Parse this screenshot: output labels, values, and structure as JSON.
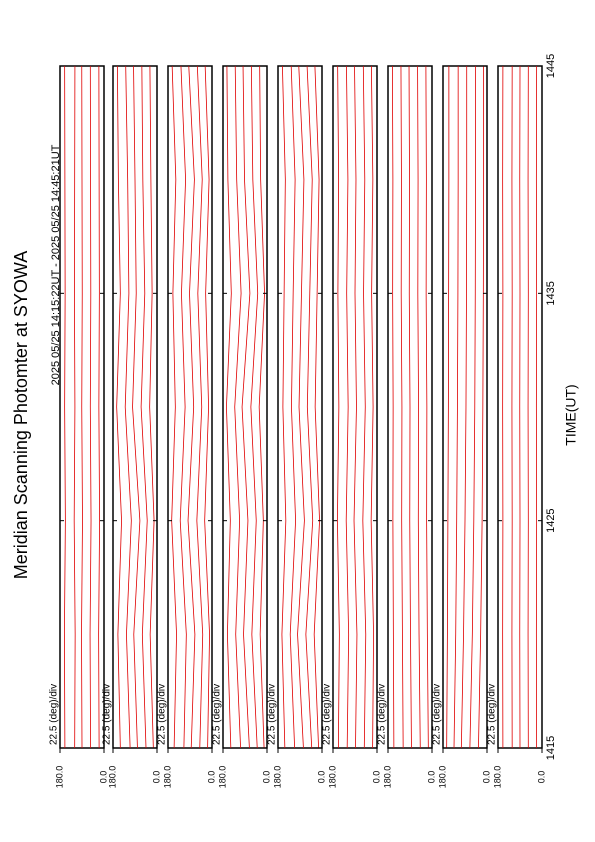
{
  "chart_data": [
    {
      "type": "line",
      "title": "Meridian Scanning Photomter at SYOWA",
      "subtitle": "2025 05/25 14:15:22UT - 2025 05/25 14:45:21UT",
      "annotation": "22.5 (deg)/div",
      "x": [
        1415,
        1420,
        1425,
        1430,
        1435,
        1440,
        1445
      ],
      "xlim": [
        1415,
        1445
      ],
      "xticks": [
        1415,
        1425,
        1435,
        1445
      ],
      "ylim": [
        180,
        0
      ],
      "yticks": [
        {
          "value": 180,
          "label": "180.0"
        },
        {
          "value": 0,
          "label": "0.0"
        }
      ],
      "series": [
        {
          "color": "#e00000",
          "values": [
            160,
            162,
            158,
            161,
            159,
            160,
            161
          ]
        },
        {
          "color": "#e00000",
          "values": [
            120,
            118,
            122,
            119,
            121,
            120,
            119
          ]
        },
        {
          "color": "#e00000",
          "values": [
            90,
            92,
            88,
            91,
            89,
            90,
            91
          ]
        },
        {
          "color": "#e00000",
          "values": [
            55,
            57,
            53,
            56,
            54,
            55,
            56
          ]
        },
        {
          "color": "#e00000",
          "values": [
            20,
            22,
            18,
            21,
            19,
            20,
            21
          ]
        }
      ]
    },
    {
      "type": "line",
      "annotation": "22.5 (deg)/div",
      "x": [
        1415,
        1420,
        1425,
        1430,
        1435,
        1440,
        1445
      ],
      "xlim": [
        1415,
        1445
      ],
      "xticks": [
        1415,
        1425,
        1435,
        1445
      ],
      "ylim": [
        180,
        0
      ],
      "yticks": [
        {
          "value": 180,
          "label": "180.0"
        },
        {
          "value": 0,
          "label": "0.0"
        }
      ],
      "series": [
        {
          "color": "#e00000",
          "values": [
            150,
            160,
            145,
            165,
            150,
            158,
            162
          ]
        },
        {
          "color": "#e00000",
          "values": [
            110,
            125,
            105,
            130,
            115,
            120,
            128
          ]
        },
        {
          "color": "#e00000",
          "values": [
            80,
            95,
            70,
            100,
            85,
            90,
            96
          ]
        },
        {
          "color": "#e00000",
          "values": [
            45,
            60,
            40,
            65,
            50,
            58,
            62
          ]
        },
        {
          "color": "#e00000",
          "values": [
            15,
            28,
            12,
            30,
            20,
            25,
            29
          ]
        }
      ]
    },
    {
      "type": "line",
      "annotation": "22.5 (deg)/div",
      "x": [
        1415,
        1420,
        1425,
        1430,
        1435,
        1440,
        1445
      ],
      "xlim": [
        1415,
        1445
      ],
      "xticks": [
        1415,
        1425,
        1435,
        1445
      ],
      "ylim": [
        180,
        0
      ],
      "yticks": [
        {
          "value": 180,
          "label": "180.0"
        },
        {
          "value": 0,
          "label": "0.0"
        }
      ],
      "series": [
        {
          "color": "#e00000",
          "values": [
            155,
            145,
            165,
            150,
            160,
            148,
            163
          ]
        },
        {
          "color": "#e00000",
          "values": [
            115,
            105,
            130,
            110,
            125,
            108,
            127
          ]
        },
        {
          "color": "#e00000",
          "values": [
            85,
            70,
            98,
            75,
            92,
            72,
            95
          ]
        },
        {
          "color": "#e00000",
          "values": [
            50,
            38,
            62,
            42,
            58,
            40,
            60
          ]
        },
        {
          "color": "#e00000",
          "values": [
            18,
            10,
            30,
            14,
            26,
            12,
            28
          ]
        }
      ]
    },
    {
      "type": "line",
      "annotation": "22.5 (deg)/div",
      "x": [
        1415,
        1420,
        1425,
        1430,
        1435,
        1440,
        1445
      ],
      "xlim": [
        1415,
        1445
      ],
      "xticks": [
        1415,
        1425,
        1435,
        1445
      ],
      "ylim": [
        180,
        0
      ],
      "yticks": [
        {
          "value": 180,
          "label": "180.0"
        },
        {
          "value": 0,
          "label": "0.0"
        }
      ],
      "series": [
        {
          "color": "#e00000",
          "values": [
            148,
            162,
            150,
            166,
            146,
            160,
            164
          ]
        },
        {
          "color": "#e00000",
          "values": [
            108,
            128,
            112,
            132,
            106,
            124,
            130
          ]
        },
        {
          "color": "#e00000",
          "values": [
            72,
            96,
            78,
            102,
            70,
            92,
            98
          ]
        },
        {
          "color": "#e00000",
          "values": [
            40,
            62,
            44,
            66,
            38,
            58,
            64
          ]
        },
        {
          "color": "#e00000",
          "values": [
            12,
            28,
            15,
            32,
            10,
            26,
            30
          ]
        }
      ]
    },
    {
      "type": "line",
      "annotation": "22.5 (deg)/div",
      "x": [
        1415,
        1420,
        1425,
        1430,
        1435,
        1440,
        1445
      ],
      "xlim": [
        1415,
        1445
      ],
      "xticks": [
        1415,
        1425,
        1435,
        1445
      ],
      "ylim": [
        180,
        0
      ],
      "yticks": [
        {
          "value": 180,
          "label": "180.0"
        },
        {
          "value": 0,
          "label": "0.0"
        }
      ],
      "series": [
        {
          "color": "#e00000",
          "values": [
            152,
            164,
            148,
            160,
            155,
            150,
            162
          ]
        },
        {
          "color": "#e00000",
          "values": [
            112,
            130,
            108,
            125,
            118,
            110,
            126
          ]
        },
        {
          "color": "#e00000",
          "values": [
            76,
            100,
            72,
            94,
            84,
            74,
            95
          ]
        },
        {
          "color": "#e00000",
          "values": [
            42,
            66,
            38,
            60,
            50,
            40,
            61
          ]
        },
        {
          "color": "#e00000",
          "values": [
            14,
            32,
            10,
            28,
            20,
            12,
            29
          ]
        }
      ]
    },
    {
      "type": "line",
      "annotation": "22.5 (deg)/div",
      "x": [
        1415,
        1420,
        1425,
        1430,
        1435,
        1440,
        1445
      ],
      "xlim": [
        1415,
        1445
      ],
      "xticks": [
        1415,
        1425,
        1435,
        1445
      ],
      "ylim": [
        180,
        0
      ],
      "yticks": [
        {
          "value": 180,
          "label": "180.0"
        },
        {
          "value": 0,
          "label": "0.0"
        }
      ],
      "series": [
        {
          "color": "#e00000",
          "values": [
            158,
            154,
            162,
            156,
            160,
            157,
            161
          ]
        },
        {
          "color": "#e00000",
          "values": [
            122,
            116,
            126,
            118,
            124,
            119,
            125
          ]
        },
        {
          "color": "#e00000",
          "values": [
            88,
            82,
            94,
            84,
            90,
            86,
            92
          ]
        },
        {
          "color": "#e00000",
          "values": [
            52,
            46,
            58,
            48,
            55,
            50,
            56
          ]
        },
        {
          "color": "#e00000",
          "values": [
            18,
            14,
            24,
            16,
            22,
            17,
            23
          ]
        }
      ]
    },
    {
      "type": "line",
      "annotation": "22.5 (deg)/div",
      "x": [
        1415,
        1420,
        1425,
        1430,
        1435,
        1440,
        1445
      ],
      "xlim": [
        1415,
        1445
      ],
      "xticks": [
        1415,
        1425,
        1435,
        1445
      ],
      "ylim": [
        180,
        0
      ],
      "yticks": [
        {
          "value": 180,
          "label": "180.0"
        },
        {
          "value": 0,
          "label": "0.0"
        }
      ],
      "series": [
        {
          "color": "#e00000",
          "values": [
            156,
            158,
            160,
            159,
            161,
            160,
            162
          ]
        },
        {
          "color": "#e00000",
          "values": [
            118,
            121,
            124,
            123,
            126,
            125,
            127
          ]
        },
        {
          "color": "#e00000",
          "values": [
            84,
            88,
            91,
            90,
            93,
            92,
            94
          ]
        },
        {
          "color": "#e00000",
          "values": [
            48,
            53,
            56,
            55,
            58,
            57,
            59
          ]
        },
        {
          "color": "#e00000",
          "values": [
            15,
            19,
            22,
            21,
            24,
            23,
            25
          ]
        }
      ]
    },
    {
      "type": "line",
      "annotation": "22.5 (deg)/div",
      "x": [
        1415,
        1420,
        1425,
        1430,
        1435,
        1440,
        1445
      ],
      "xlim": [
        1415,
        1445
      ],
      "xticks": [
        1415,
        1425,
        1435,
        1445
      ],
      "ylim": [
        180,
        0
      ],
      "yticks": [
        {
          "value": 180,
          "label": "180.0"
        },
        {
          "value": 0,
          "label": "0.0"
        }
      ],
      "series": [
        {
          "color": "#e00000",
          "values": [
            165,
            162,
            160,
            158,
            157,
            156,
            156
          ]
        },
        {
          "color": "#e00000",
          "values": [
            135,
            128,
            124,
            121,
            119,
            118,
            118
          ]
        },
        {
          "color": "#e00000",
          "values": [
            105,
            96,
            90,
            86,
            84,
            83,
            83
          ]
        },
        {
          "color": "#e00000",
          "values": [
            70,
            60,
            54,
            50,
            48,
            47,
            47
          ]
        },
        {
          "color": "#e00000",
          "values": [
            35,
            26,
            20,
            17,
            15,
            14,
            14
          ]
        }
      ]
    },
    {
      "type": "line",
      "annotation": "22.5 (deg)/div",
      "x_label": "TIME(UT)",
      "x": [
        1415,
        1420,
        1425,
        1430,
        1435,
        1440,
        1445
      ],
      "xlim": [
        1415,
        1445
      ],
      "xticks": [
        1415,
        1425,
        1435,
        1445
      ],
      "ylim": [
        180,
        0
      ],
      "yticks": [
        {
          "value": 180,
          "label": "180.0"
        },
        {
          "value": 0,
          "label": "0.0"
        }
      ],
      "series": [
        {
          "color": "#e00000",
          "values": [
            160,
            161,
            160,
            161,
            160,
            161,
            160
          ]
        },
        {
          "color": "#e00000",
          "values": [
            122,
            123,
            122,
            123,
            122,
            123,
            122
          ]
        },
        {
          "color": "#e00000",
          "values": [
            90,
            91,
            90,
            91,
            90,
            91,
            90
          ]
        },
        {
          "color": "#e00000",
          "values": [
            56,
            57,
            56,
            57,
            56,
            57,
            56
          ]
        },
        {
          "color": "#e00000",
          "values": [
            22,
            23,
            22,
            23,
            22,
            23,
            22
          ]
        }
      ]
    }
  ]
}
